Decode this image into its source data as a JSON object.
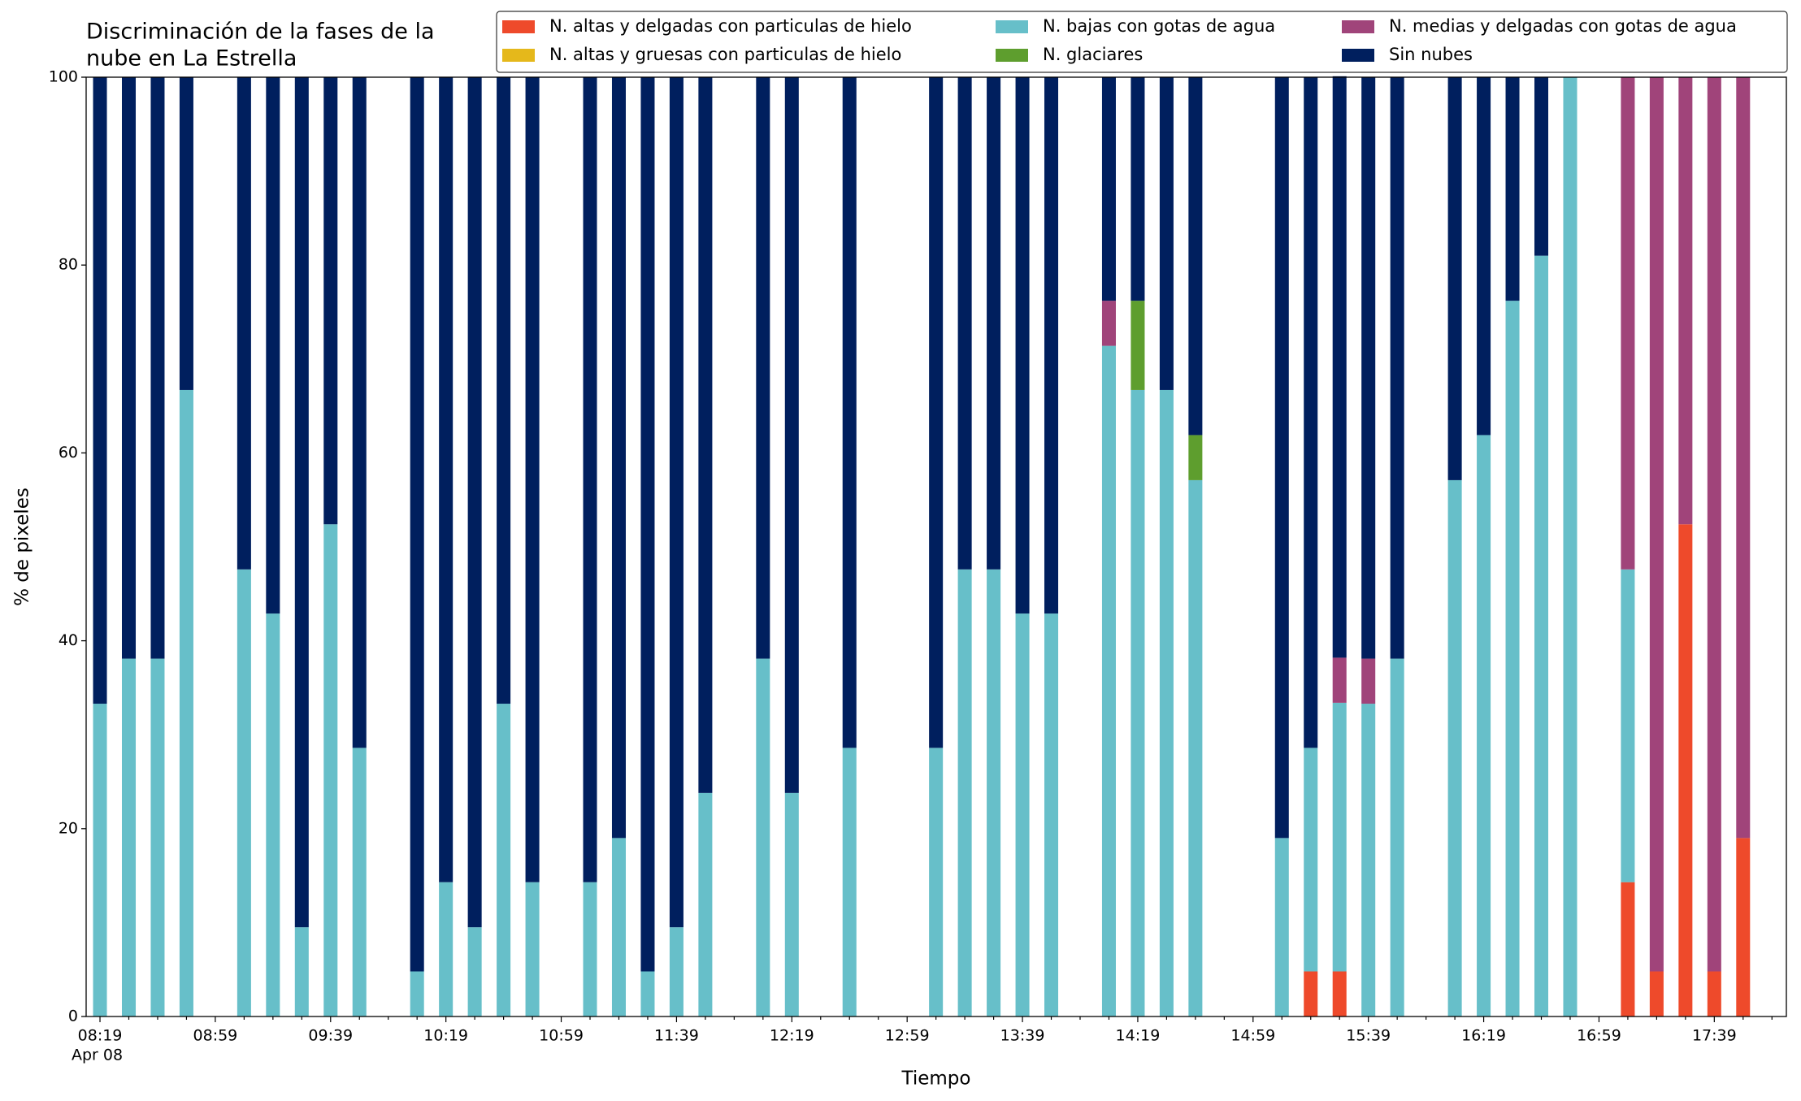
{
  "chart_data": {
    "type": "stacked_bar",
    "title": [
      "Discriminación de la fases de la",
      "nube en La Estrella"
    ],
    "xlabel": "Tiempo",
    "ylabel": "% de pixeles",
    "x_sublabel": "Apr 08",
    "categories": [
      "08:19",
      null,
      null,
      null,
      "08:59",
      null,
      null,
      null,
      "09:39",
      null,
      null,
      null,
      "10:19",
      null,
      null,
      null,
      "10:59",
      null,
      null,
      null,
      "11:39",
      null,
      null,
      null,
      "12:19",
      null,
      null,
      null,
      "12:59",
      null,
      null,
      null,
      "13:39",
      null,
      null,
      null,
      "14:19",
      null,
      null,
      null,
      "14:59",
      null,
      null,
      null,
      "15:39",
      null,
      null,
      null,
      "16:19",
      null,
      null,
      null,
      "16:59",
      null,
      null,
      null,
      "17:39",
      null,
      null
    ],
    "ylim": [
      0,
      100
    ],
    "yticks": [
      0,
      20,
      40,
      60,
      80,
      100
    ],
    "grid": false,
    "legend": "upper right",
    "legend_columns": 3,
    "series": [
      {
        "name": "N. altas y delgadas con particulas de hielo",
        "color": "#ee4a2b",
        "values": [
          0,
          0,
          0,
          0,
          null,
          0,
          0,
          0,
          0,
          0,
          null,
          0,
          0,
          0,
          0,
          0,
          null,
          0,
          0,
          0,
          0,
          0,
          null,
          0,
          0,
          null,
          0,
          null,
          null,
          0,
          0,
          0,
          0,
          0,
          null,
          0,
          0,
          0,
          0,
          null,
          null,
          0,
          4.8,
          4.8,
          0,
          0,
          null,
          0,
          0,
          0,
          0,
          0,
          null,
          14.3,
          4.8,
          52.4,
          4.8,
          19.0,
          null
        ]
      },
      {
        "name": "N. altas y gruesas con particulas de hielo",
        "color": "#e5b81b",
        "values": [
          0,
          0,
          0,
          0,
          null,
          0,
          0,
          0,
          0,
          0,
          null,
          0,
          0,
          0,
          0,
          0,
          null,
          0,
          0,
          0,
          0,
          0,
          null,
          0,
          0,
          null,
          0,
          null,
          null,
          0,
          0,
          0,
          0,
          0,
          null,
          0,
          0,
          0,
          0,
          null,
          null,
          0,
          0,
          0,
          0,
          0,
          null,
          0,
          0,
          0,
          0,
          0,
          null,
          0,
          0,
          0,
          0,
          0,
          null
        ]
      },
      {
        "name": "N. bajas con gotas de agua",
        "color": "#67bfc9",
        "values": [
          33.3,
          38.1,
          38.1,
          66.7,
          null,
          47.6,
          42.9,
          9.5,
          52.4,
          28.6,
          null,
          4.8,
          14.3,
          9.5,
          33.3,
          14.3,
          null,
          14.3,
          19.0,
          4.8,
          9.5,
          23.8,
          null,
          38.1,
          23.8,
          null,
          28.6,
          null,
          null,
          28.6,
          47.6,
          47.6,
          42.9,
          42.9,
          null,
          71.4,
          66.7,
          66.7,
          57.1,
          null,
          null,
          19.0,
          23.8,
          28.6,
          33.3,
          38.1,
          null,
          57.1,
          61.9,
          76.2,
          81.0,
          100,
          null,
          33.3,
          0,
          0,
          0,
          0,
          null
        ]
      },
      {
        "name": "N. glaciares",
        "color": "#5e9e2e",
        "values": [
          0,
          0,
          0,
          0,
          null,
          0,
          0,
          0,
          0,
          0,
          null,
          0,
          0,
          0,
          0,
          0,
          null,
          0,
          0,
          0,
          0,
          0,
          null,
          0,
          0,
          null,
          0,
          null,
          null,
          0,
          0,
          0,
          0,
          0,
          null,
          0,
          9.5,
          0,
          4.8,
          null,
          null,
          0,
          0,
          0,
          0,
          0,
          null,
          0,
          0,
          0,
          0,
          0,
          null,
          0,
          0,
          0,
          0,
          0,
          null
        ]
      },
      {
        "name": "N. medias y delgadas con gotas de agua",
        "color": "#a0447a",
        "values": [
          0,
          0,
          0,
          0,
          null,
          0,
          0,
          0,
          0,
          0,
          null,
          0,
          0,
          0,
          0,
          0,
          null,
          0,
          0,
          0,
          0,
          0,
          null,
          0,
          0,
          null,
          0,
          null,
          null,
          0,
          0,
          0,
          0,
          0,
          null,
          4.8,
          0,
          0,
          0,
          null,
          null,
          0,
          0,
          4.8,
          4.8,
          0,
          null,
          0,
          0,
          0,
          0,
          0,
          null,
          52.4,
          95.2,
          47.6,
          95.2,
          81.0,
          null
        ]
      },
      {
        "name": "Sin nubes",
        "color": "#001f5e",
        "values": [
          66.7,
          61.9,
          61.9,
          33.3,
          null,
          52.4,
          57.1,
          90.5,
          47.6,
          71.4,
          null,
          95.2,
          85.7,
          90.5,
          66.7,
          85.7,
          null,
          85.7,
          81.0,
          95.2,
          90.5,
          76.2,
          null,
          61.9,
          76.2,
          null,
          71.4,
          null,
          null,
          71.4,
          52.4,
          52.4,
          57.1,
          57.1,
          null,
          23.8,
          23.8,
          33.3,
          38.1,
          null,
          null,
          81.0,
          71.4,
          61.9,
          61.9,
          61.9,
          null,
          42.9,
          38.1,
          23.8,
          19.0,
          0,
          null,
          0,
          0,
          0,
          0,
          0,
          null
        ]
      }
    ]
  }
}
